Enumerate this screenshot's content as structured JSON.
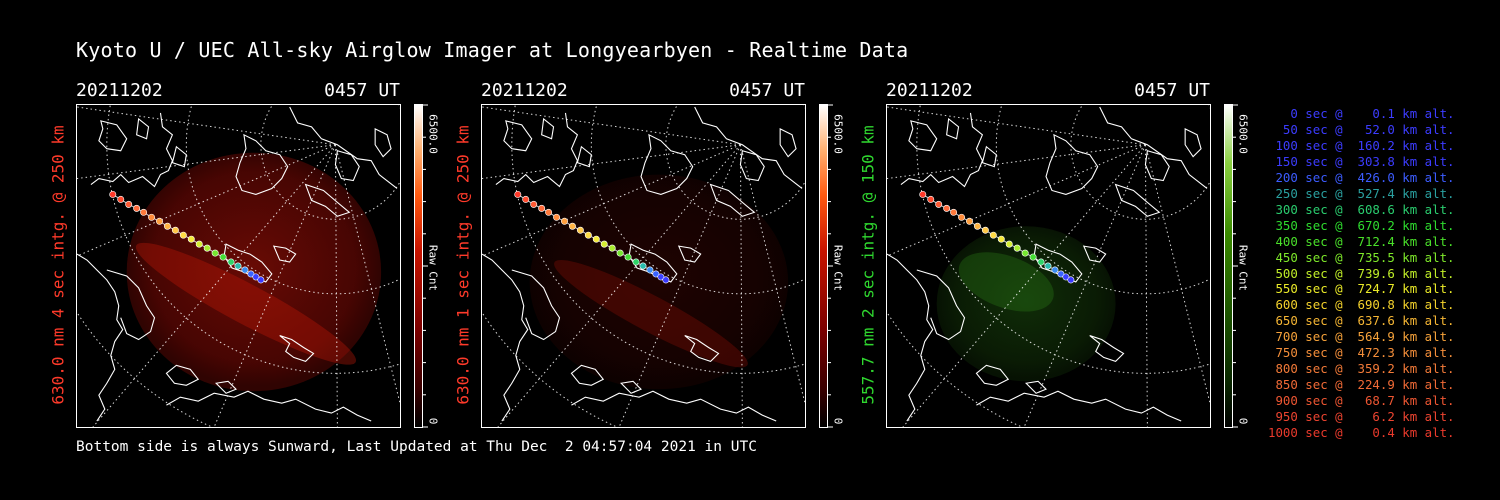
{
  "title": "Kyoto U / UEC All-sky Airglow Imager at Longyearbyen - Realtime Data",
  "footer": "Bottom side is always Sunward, Last Updated at Thu Dec  2 04:57:04 2021 in UTC",
  "colors": {
    "background": "#000000",
    "red_label": "#ff3a2a",
    "green_label": "#2fd82f"
  },
  "panels": [
    {
      "date": "20211202",
      "time": "0457 UT",
      "ylabel": "630.0 nm 4 sec intg. @ 250 km",
      "label_color": "#ff3a2a",
      "colorbar_max": "6500.0",
      "colorbar_min": "0",
      "colorbar_title": "Raw Cnt",
      "colormap": "red",
      "glow_strength": 0.75
    },
    {
      "date": "20211202",
      "time": "0457 UT",
      "ylabel": "630.0 nm 1 sec intg. @ 250 km",
      "label_color": "#ff3a2a",
      "colorbar_max": "6500.0",
      "colorbar_min": "0",
      "colorbar_title": "Raw Cnt",
      "colormap": "red",
      "glow_strength": 0.22
    },
    {
      "date": "20211202",
      "time": "0457 UT",
      "ylabel": "557.7 nm 2 sec intg. @ 150 km",
      "label_color": "#2fd82f",
      "colorbar_max": "6500.0",
      "colorbar_min": "0",
      "colorbar_title": "Raw Cnt",
      "colormap": "green",
      "glow_strength": 0.5
    }
  ],
  "legend": [
    {
      "text": "   0 sec @    0.1 km alt.",
      "color": "#3c3cff"
    },
    {
      "text": "  50 sec @   52.0 km alt.",
      "color": "#3c3cff"
    },
    {
      "text": " 100 sec @  160.2 km alt.",
      "color": "#3c3cff"
    },
    {
      "text": " 150 sec @  303.8 km alt.",
      "color": "#3c3cff"
    },
    {
      "text": " 200 sec @  426.0 km alt.",
      "color": "#3c5cff"
    },
    {
      "text": " 250 sec @  527.4 km alt.",
      "color": "#2aa0a0"
    },
    {
      "text": " 300 sec @  608.6 km alt.",
      "color": "#2acc6e"
    },
    {
      "text": " 350 sec @  670.2 km alt.",
      "color": "#2edc2e"
    },
    {
      "text": " 400 sec @  712.4 km alt.",
      "color": "#4ae02a"
    },
    {
      "text": " 450 sec @  735.5 km alt.",
      "color": "#7ee82a"
    },
    {
      "text": " 500 sec @  739.6 km alt.",
      "color": "#c0ee28"
    },
    {
      "text": " 550 sec @  724.7 km alt.",
      "color": "#eaea28"
    },
    {
      "text": " 600 sec @  690.8 km alt.",
      "color": "#f4d22c"
    },
    {
      "text": " 650 sec @  637.6 km alt.",
      "color": "#f6b634"
    },
    {
      "text": " 700 sec @  564.9 km alt.",
      "color": "#f6a23a"
    },
    {
      "text": " 750 sec @  472.3 km alt.",
      "color": "#f48e3a"
    },
    {
      "text": " 800 sec @  359.2 km alt.",
      "color": "#f27a38"
    },
    {
      "text": " 850 sec @  224.9 km alt.",
      "color": "#f06a36"
    },
    {
      "text": " 900 sec @   68.7 km alt.",
      "color": "#ee5632"
    },
    {
      "text": " 950 sec @    6.2 km alt.",
      "color": "#ec4430"
    },
    {
      "text": "1000 sec @    0.4 km alt.",
      "color": "#ea3a2c"
    }
  ]
}
